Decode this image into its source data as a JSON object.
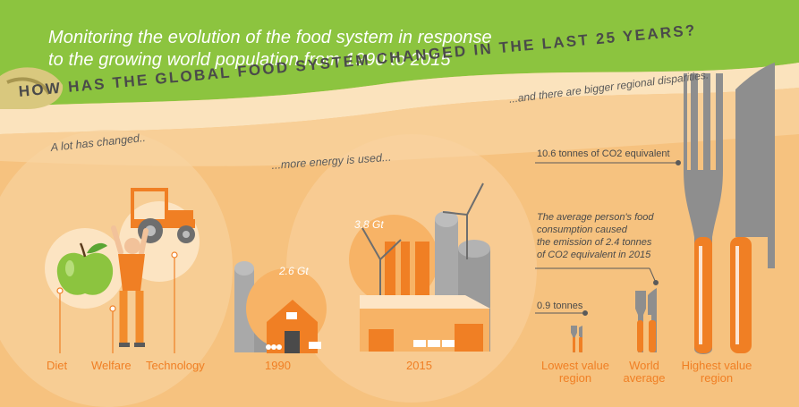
{
  "header": {
    "line1": "Monitoring the evolution of the food system in response",
    "line2": "to the growing world population from 1990 to 2015"
  },
  "question": "HOW HAS THE GLOBAL FOOD SYSTEM CHANGED IN THE LAST 25 YEARS?",
  "notes": {
    "changed": "A lot has changed..",
    "energy": "...more energy is used...",
    "disparities": "...and there are bigger regional disparities."
  },
  "change_labels": [
    "Diet",
    "Welfare",
    "Technology"
  ],
  "energy": {
    "value_1990": "2.6 Gt",
    "value_2015": "3.8 Gt",
    "year_1990": "1990",
    "year_2015": "2015"
  },
  "emissions": {
    "high_value": "10.6 tonnes of CO2 equivalent",
    "low_value": "0.9 tonnes",
    "average_text_1": "The average person's food",
    "average_text_2": "consumption caused",
    "average_text_3": "the emission of 2.4 tonnes",
    "average_text_4": "of CO2 equivalent in 2015",
    "labels": {
      "lowest_1": "Lowest value",
      "lowest_2": "region",
      "world_1": "World",
      "world_2": "average",
      "highest_1": "Highest value",
      "highest_2": "region"
    }
  },
  "colors": {
    "green": "#8cc43f",
    "orange": "#f07f24",
    "light_orange": "#f6c27f",
    "grey": "#8e8e8e"
  }
}
